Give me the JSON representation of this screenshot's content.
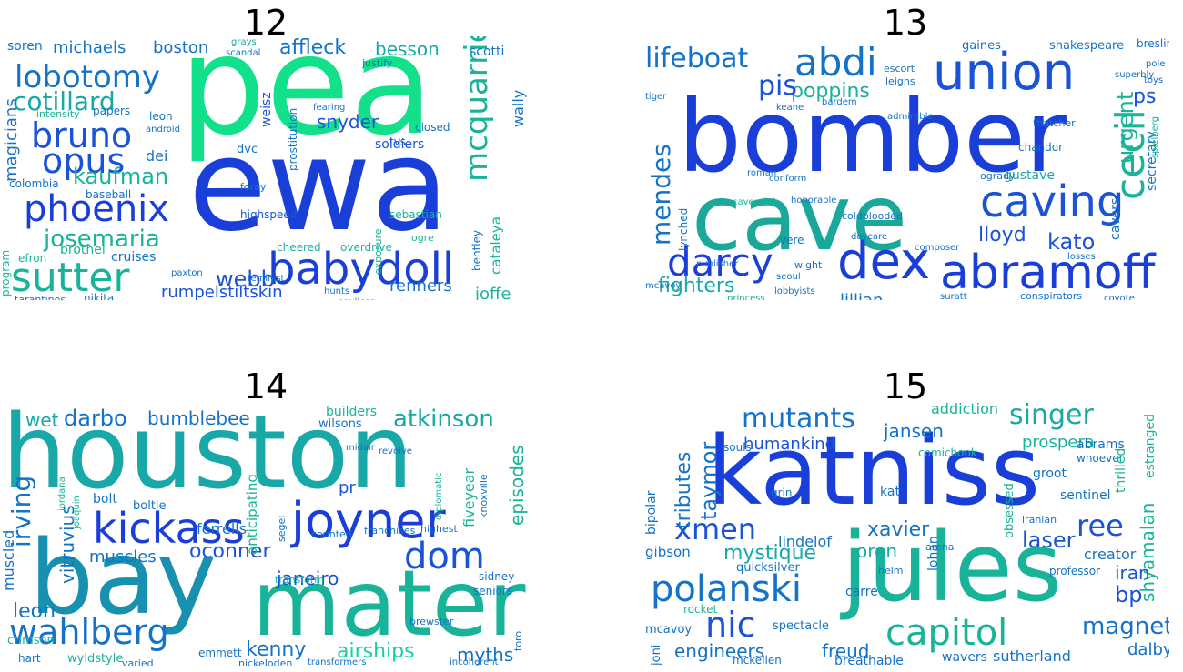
{
  "panels": [
    {
      "title": "12",
      "words": [
        {
          "t": "pea",
          "c": "#12e08a"
        },
        {
          "t": "ewa",
          "c": "#1a3fd8"
        },
        {
          "t": "babydoll",
          "c": "#1a3fd8"
        },
        {
          "t": "phoenix",
          "c": "#1a3fd8"
        },
        {
          "t": "sutter",
          "c": "#19b39a"
        },
        {
          "t": "lobotomy",
          "c": "#1473c8"
        },
        {
          "t": "bruno",
          "c": "#1a52d8"
        },
        {
          "t": "opus",
          "c": "#1a52d8"
        },
        {
          "t": "cotillard",
          "c": "#19a8a8"
        },
        {
          "t": "josemaria",
          "c": "#19b39a"
        },
        {
          "t": "kaufman",
          "c": "#19b39a"
        },
        {
          "t": "mcquarrie",
          "c": "#19b39a"
        },
        {
          "t": "webb",
          "c": "#1a52d8"
        },
        {
          "t": "rumpelstiltskin",
          "c": "#1a52d8"
        },
        {
          "t": "affleck",
          "c": "#1473c8"
        },
        {
          "t": "snyder",
          "c": "#1a52d8"
        },
        {
          "t": "besson",
          "c": "#19a8a8"
        },
        {
          "t": "michaels",
          "c": "#1473c8"
        },
        {
          "t": "boston",
          "c": "#1473c8"
        },
        {
          "t": "renners",
          "c": "#1473c8"
        },
        {
          "t": "joffe",
          "c": "#19b39a"
        },
        {
          "t": "cataleya",
          "c": "#19b39a"
        },
        {
          "t": "wally",
          "c": "#1473c8"
        },
        {
          "t": "magicians",
          "c": "#1473c8"
        },
        {
          "t": "soldiers",
          "c": "#1a52d8"
        },
        {
          "t": "cruises",
          "c": "#1473c8"
        },
        {
          "t": "brothel",
          "c": "#19b39a"
        },
        {
          "t": "nikita",
          "c": "#1473c8"
        },
        {
          "t": "tarantinos",
          "c": "#1473c8"
        },
        {
          "t": "soren",
          "c": "#1473c8"
        },
        {
          "t": "highspeed",
          "c": "#1a52d8"
        },
        {
          "t": "prostitution",
          "c": "#1473c8"
        },
        {
          "t": "weisz",
          "c": "#1a52d8"
        },
        {
          "t": "sebastian",
          "c": "#19b39a"
        },
        {
          "t": "bentley",
          "c": "#1473c8"
        },
        {
          "t": "closed",
          "c": "#1473c8"
        },
        {
          "t": "colombia",
          "c": "#1473c8"
        },
        {
          "t": "efron",
          "c": "#19b39a"
        },
        {
          "t": "program",
          "c": "#19b39a"
        },
        {
          "t": "dei",
          "c": "#1473c8"
        },
        {
          "t": "baseball",
          "c": "#1473c8"
        },
        {
          "t": "scotti",
          "c": "#1473c8"
        },
        {
          "t": "papers",
          "c": "#1473c8"
        },
        {
          "t": "justify",
          "c": "#1473c8"
        },
        {
          "t": "intensity",
          "c": "#19b39a"
        },
        {
          "t": "cheered",
          "c": "#19b39a"
        },
        {
          "t": "overdrive",
          "c": "#19b39a"
        },
        {
          "t": "soulless",
          "c": "#1473c8"
        },
        {
          "t": "invasion",
          "c": "#19b39a"
        },
        {
          "t": "exposure",
          "c": "#19b39a"
        },
        {
          "t": "ogre",
          "c": "#19b39a"
        },
        {
          "t": "foray",
          "c": "#1473c8"
        },
        {
          "t": "fearing",
          "c": "#1473c8"
        },
        {
          "t": "dvc",
          "c": "#1473c8"
        },
        {
          "t": "hunts",
          "c": "#1473c8"
        },
        {
          "t": "android",
          "c": "#1473c8"
        },
        {
          "t": "paxton",
          "c": "#1473c8"
        },
        {
          "t": "feminist",
          "c": "#1473c8"
        },
        {
          "t": "tvs",
          "c": "#1a52d8"
        },
        {
          "t": "leon",
          "c": "#1473c8"
        },
        {
          "t": "scandal",
          "c": "#1473c8"
        },
        {
          "t": "grays",
          "c": "#19a8a8"
        }
      ]
    },
    {
      "title": "13",
      "words": [
        {
          "t": "bomber",
          "c": "#1a3fd8"
        },
        {
          "t": "cave",
          "c": "#19a89a"
        },
        {
          "t": "union",
          "c": "#1a52d8"
        },
        {
          "t": "abramoff",
          "c": "#1a3fd8"
        },
        {
          "t": "dex",
          "c": "#1a3fd8"
        },
        {
          "t": "caving",
          "c": "#1a52d8"
        },
        {
          "t": "darcy",
          "c": "#1a3fd8"
        },
        {
          "t": "abdi",
          "c": "#1473c8"
        },
        {
          "t": "cecil",
          "c": "#19b39a"
        },
        {
          "t": "lifeboat",
          "c": "#1473c8"
        },
        {
          "t": "mendes",
          "c": "#1473c8"
        },
        {
          "t": "poppins",
          "c": "#19b39a"
        },
        {
          "t": "pis",
          "c": "#1a52d8"
        },
        {
          "t": "fighters",
          "c": "#19a8a8"
        },
        {
          "t": "lillian",
          "c": "#1473c8"
        },
        {
          "t": "lloyd",
          "c": "#1a52d8"
        },
        {
          "t": "kato",
          "c": "#1a52d8"
        },
        {
          "t": "ps",
          "c": "#1a52d8"
        },
        {
          "t": "shakespeare",
          "c": "#1473c8"
        },
        {
          "t": "gaines",
          "c": "#1473c8"
        },
        {
          "t": "breslin",
          "c": "#1473c8"
        },
        {
          "t": "urgent",
          "c": "#19b39a"
        },
        {
          "t": "secretary",
          "c": "#1473c8"
        },
        {
          "t": "cavers",
          "c": "#1473c8"
        },
        {
          "t": "gustave",
          "c": "#19a8a8"
        },
        {
          "t": "ogrady",
          "c": "#1473c8"
        },
        {
          "t": "chandor",
          "c": "#1473c8"
        },
        {
          "t": "thatcher",
          "c": "#1473c8"
        },
        {
          "t": "lynched",
          "c": "#1473c8"
        },
        {
          "t": "wight",
          "c": "#1473c8"
        },
        {
          "t": "vere",
          "c": "#1473c8"
        },
        {
          "t": "roman",
          "c": "#1473c8"
        },
        {
          "t": "conform",
          "c": "#1473c8"
        },
        {
          "t": "lobbyists",
          "c": "#1473c8"
        },
        {
          "t": "conspirators",
          "c": "#1473c8"
        },
        {
          "t": "princess",
          "c": "#19b39a"
        },
        {
          "t": "suratt",
          "c": "#1473c8"
        },
        {
          "t": "coyote",
          "c": "#1473c8"
        },
        {
          "t": "escort",
          "c": "#1473c8"
        },
        {
          "t": "leighs",
          "c": "#1473c8"
        },
        {
          "t": "tiger",
          "c": "#1473c8"
        },
        {
          "t": "keane",
          "c": "#1473c8"
        },
        {
          "t": "bardem",
          "c": "#1473c8"
        },
        {
          "t": "daycare",
          "c": "#1473c8"
        },
        {
          "t": "composer",
          "c": "#1473c8"
        },
        {
          "t": "spielberg",
          "c": "#19b39a"
        },
        {
          "t": "losses",
          "c": "#1473c8"
        },
        {
          "t": "seoul",
          "c": "#1473c8"
        },
        {
          "t": "cavendish",
          "c": "#19b39a"
        },
        {
          "t": "coldblooded",
          "c": "#1473c8"
        },
        {
          "t": "mcavoy",
          "c": "#1473c8"
        },
        {
          "t": "publisher",
          "c": "#1473c8"
        },
        {
          "t": "honorable",
          "c": "#1473c8"
        },
        {
          "t": "admirable",
          "c": "#1473c8"
        },
        {
          "t": "toys",
          "c": "#1473c8"
        },
        {
          "t": "pole",
          "c": "#1473c8"
        },
        {
          "t": "superbly",
          "c": "#1473c8"
        }
      ]
    },
    {
      "title": "14",
      "words": [
        {
          "t": "houston",
          "c": "#19a8a8"
        },
        {
          "t": "bay",
          "c": "#1890b0"
        },
        {
          "t": "mater",
          "c": "#19b39a"
        },
        {
          "t": "joyner",
          "c": "#1a3fd8"
        },
        {
          "t": "kickass",
          "c": "#1a3fd8"
        },
        {
          "t": "wahlberg",
          "c": "#1473c8"
        },
        {
          "t": "dom",
          "c": "#1a52d8"
        },
        {
          "t": "atkinson",
          "c": "#19a8a8"
        },
        {
          "t": "darbo",
          "c": "#1473c8"
        },
        {
          "t": "bumblebee",
          "c": "#1473c8"
        },
        {
          "t": "airships",
          "c": "#12d0a0"
        },
        {
          "t": "kenny",
          "c": "#1473c8"
        },
        {
          "t": "myths",
          "c": "#1473c8"
        },
        {
          "t": "irving",
          "c": "#1473c8"
        },
        {
          "t": "leon",
          "c": "#1473c8"
        },
        {
          "t": "oconner",
          "c": "#1a52d8"
        },
        {
          "t": "muscles",
          "c": "#1473c8"
        },
        {
          "t": "ferrells",
          "c": "#1473c8"
        },
        {
          "t": "episodes",
          "c": "#19b39a"
        },
        {
          "t": "wet",
          "c": "#19a8a8"
        },
        {
          "t": "janeiro",
          "c": "#1a52d8"
        },
        {
          "t": "vitruvius",
          "c": "#1473c8"
        },
        {
          "t": "muscled",
          "c": "#1473c8"
        },
        {
          "t": "bolt",
          "c": "#1473c8"
        },
        {
          "t": "boltie",
          "c": "#1473c8"
        },
        {
          "t": "pr",
          "c": "#1a52d8"
        },
        {
          "t": "anticipating",
          "c": "#19b39a"
        },
        {
          "t": "builders",
          "c": "#19b39a"
        },
        {
          "t": "wilsons",
          "c": "#1473c8"
        },
        {
          "t": "fiveyear",
          "c": "#19b39a"
        },
        {
          "t": "sidney",
          "c": "#1473c8"
        },
        {
          "t": "seniors",
          "c": "#1473c8"
        },
        {
          "t": "hart",
          "c": "#1473c8"
        },
        {
          "t": "wyldstyle",
          "c": "#19b39a"
        },
        {
          "t": "emmett",
          "c": "#1473c8"
        },
        {
          "t": "nickeloden",
          "c": "#1473c8"
        },
        {
          "t": "crimson",
          "c": "#19b39a"
        },
        {
          "t": "varied",
          "c": "#1473c8"
        },
        {
          "t": "brewster",
          "c": "#1473c8"
        },
        {
          "t": "transformers",
          "c": "#1473c8"
        },
        {
          "t": "incoherent",
          "c": "#1473c8"
        },
        {
          "t": "toro",
          "c": "#1473c8"
        },
        {
          "t": "knoxville",
          "c": "#1473c8"
        },
        {
          "t": "segel",
          "c": "#1473c8"
        },
        {
          "t": "transform",
          "c": "#19b39a"
        },
        {
          "t": "counted",
          "c": "#1473c8"
        },
        {
          "t": "franchises",
          "c": "#1473c8"
        },
        {
          "t": "highest",
          "c": "#1473c8"
        },
        {
          "t": "diplomatic",
          "c": "#19b39a"
        },
        {
          "t": "jordana",
          "c": "#19b39a"
        },
        {
          "t": "joaquin",
          "c": "#19b39a"
        },
        {
          "t": "midair",
          "c": "#1473c8"
        },
        {
          "t": "revolve",
          "c": "#1473c8"
        }
      ]
    },
    {
      "title": "15",
      "words": [
        {
          "t": "katniss",
          "c": "#1a3fd8"
        },
        {
          "t": "jules",
          "c": "#19b39a"
        },
        {
          "t": "polanski",
          "c": "#1473c8"
        },
        {
          "t": "capitol",
          "c": "#19b39a"
        },
        {
          "t": "nic",
          "c": "#1a52d8"
        },
        {
          "t": "mutants",
          "c": "#1473c8"
        },
        {
          "t": "singer",
          "c": "#19a8a8"
        },
        {
          "t": "ree",
          "c": "#1a52d8"
        },
        {
          "t": "xmen",
          "c": "#1a52d8"
        },
        {
          "t": "magneto",
          "c": "#1473c8"
        },
        {
          "t": "mystique",
          "c": "#19a8a8"
        },
        {
          "t": "engineers",
          "c": "#1473c8"
        },
        {
          "t": "freud",
          "c": "#1473c8"
        },
        {
          "t": "tributes",
          "c": "#1473c8"
        },
        {
          "t": "jansen",
          "c": "#1473c8"
        },
        {
          "t": "humankind",
          "c": "#1a52d8"
        },
        {
          "t": "taymor",
          "c": "#1473c8"
        },
        {
          "t": "xavier",
          "c": "#1473c8"
        },
        {
          "t": "laser",
          "c": "#1a52d8"
        },
        {
          "t": "oren",
          "c": "#19a8a8"
        },
        {
          "t": "lindelof",
          "c": "#1473c8"
        },
        {
          "t": "prospera",
          "c": "#19b39a"
        },
        {
          "t": "addiction",
          "c": "#19b39a"
        },
        {
          "t": "abrams",
          "c": "#1473c8"
        },
        {
          "t": "shyamalan",
          "c": "#19b39a"
        },
        {
          "t": "iran",
          "c": "#1a52d8"
        },
        {
          "t": "bp",
          "c": "#1a52d8"
        },
        {
          "t": "creator",
          "c": "#1473c8"
        },
        {
          "t": "dalby",
          "c": "#1473c8"
        },
        {
          "t": "sutherland",
          "c": "#1473c8"
        },
        {
          "t": "wavers",
          "c": "#1473c8"
        },
        {
          "t": "breathable",
          "c": "#1473c8"
        },
        {
          "t": "carre",
          "c": "#1473c8"
        },
        {
          "t": "spectacle",
          "c": "#1473c8"
        },
        {
          "t": "mcavoy",
          "c": "#1473c8"
        },
        {
          "t": "gibson",
          "c": "#1473c8"
        },
        {
          "t": "bipolar",
          "c": "#1473c8"
        },
        {
          "t": "quicksilver",
          "c": "#1473c8"
        },
        {
          "t": "sentinel",
          "c": "#1473c8"
        },
        {
          "t": "groot",
          "c": "#1473c8"
        },
        {
          "t": "kat",
          "c": "#1473c8"
        },
        {
          "t": "lohan",
          "c": "#1473c8"
        },
        {
          "t": "comicbook",
          "c": "#19b39a"
        },
        {
          "t": "souls",
          "c": "#1473c8"
        },
        {
          "t": "helm",
          "c": "#1473c8"
        },
        {
          "t": "grin",
          "c": "#1473c8"
        },
        {
          "t": "professor",
          "c": "#1473c8"
        },
        {
          "t": "iranian",
          "c": "#1473c8"
        },
        {
          "t": "obsessed",
          "c": "#19b39a"
        },
        {
          "t": "whoever",
          "c": "#1473c8"
        },
        {
          "t": "thrilled",
          "c": "#19b39a"
        },
        {
          "t": "estranged",
          "c": "#19b39a"
        },
        {
          "t": "mckellen",
          "c": "#1473c8"
        },
        {
          "t": "rocket",
          "c": "#19b39a"
        },
        {
          "t": "arena",
          "c": "#1473c8"
        },
        {
          "t": "joni",
          "c": "#1473c8"
        }
      ]
    }
  ]
}
